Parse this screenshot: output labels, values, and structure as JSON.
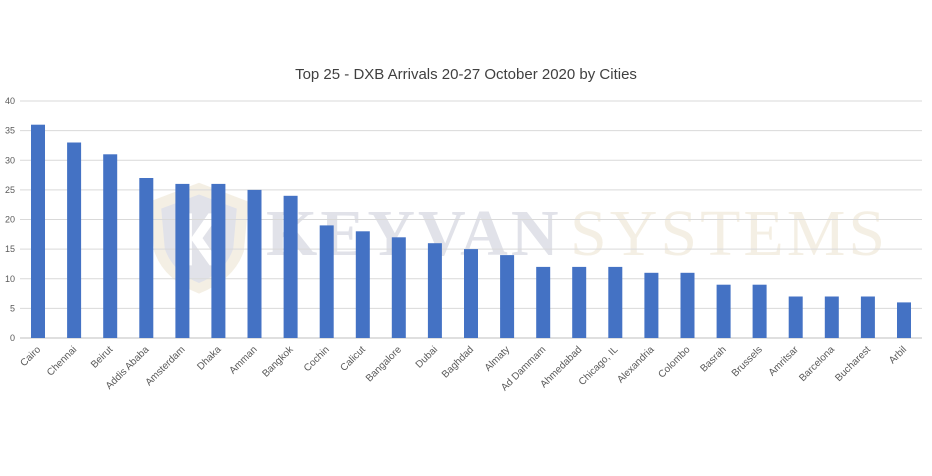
{
  "chart_data": {
    "type": "bar",
    "title": "Top 25 - DXB Arrivals 20-27 October 2020 by Cities",
    "categories": [
      "Cairo",
      "Chennai",
      "Beirut",
      "Addis Ababa",
      "Amsterdam",
      "Dhaka",
      "Amman",
      "Bangkok",
      "Cochin",
      "Calicut",
      "Bangalore",
      "Dubai",
      "Baghdad",
      "Almaty",
      "Ad Dammam",
      "Ahmedabad",
      "Chicago, IL",
      "Alexandria",
      "Colombo",
      "Basrah",
      "Brussels",
      "Amritsar",
      "Barcelona",
      "Bucharest",
      "Arbil"
    ],
    "values": [
      36,
      33,
      31,
      27,
      26,
      26,
      25,
      24,
      19,
      18,
      17,
      16,
      15,
      14,
      12,
      12,
      12,
      11,
      11,
      9,
      9,
      7,
      7,
      7,
      6
    ],
    "ylim": [
      0,
      40
    ],
    "yticks": [
      0,
      5,
      10,
      15,
      20,
      25,
      30,
      35,
      40
    ],
    "grid": true,
    "legend": "none",
    "bar_color": "#4472c4"
  },
  "watermark": {
    "word1": "KEYVAN",
    "word2": "SYSTEMS"
  }
}
